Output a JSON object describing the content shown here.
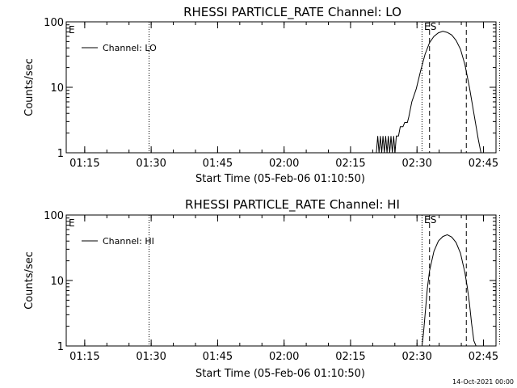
{
  "footer_timestamp": "14-Oct-2021 00:00",
  "chart_data": [
    {
      "type": "line",
      "title": "RHESSI PARTICLE_RATE Channel: LO",
      "xlabel": "Start Time (05-Feb-06 01:10:50)",
      "ylabel": "Counts/sec",
      "y_scale": "log",
      "ylim": [
        1,
        100
      ],
      "y_ticks": [
        "1",
        "10",
        "100"
      ],
      "x_unit": "minutes after 01:10:50",
      "xlim": [
        0,
        97
      ],
      "x_ticks": [
        {
          "label": "01:15",
          "x": 4.17
        },
        {
          "label": "01:30",
          "x": 19.17
        },
        {
          "label": "01:45",
          "x": 34.17
        },
        {
          "label": "02:00",
          "x": 49.17
        },
        {
          "label": "02:15",
          "x": 64.17
        },
        {
          "label": "02:30",
          "x": 79.17
        },
        {
          "label": "02:45",
          "x": 94.17
        }
      ],
      "legend": {
        "label": "Channel: LO",
        "position": "top-left",
        "corner_mark": "E"
      },
      "series": [
        {
          "name": "Channel: LO",
          "points": [
            [
              70.0,
              1.0
            ],
            [
              70.3,
              1.8
            ],
            [
              70.6,
              1.0
            ],
            [
              70.9,
              1.8
            ],
            [
              71.2,
              1.0
            ],
            [
              71.5,
              1.8
            ],
            [
              71.8,
              1.0
            ],
            [
              72.1,
              1.8
            ],
            [
              72.4,
              1.0
            ],
            [
              72.7,
              1.8
            ],
            [
              73.0,
              1.0
            ],
            [
              73.3,
              1.8
            ],
            [
              73.6,
              1.0
            ],
            [
              73.9,
              1.8
            ],
            [
              74.2,
              1.0
            ],
            [
              74.5,
              1.8
            ],
            [
              74.8,
              1.8
            ],
            [
              75.0,
              1.8
            ],
            [
              75.4,
              2.5
            ],
            [
              76.0,
              2.5
            ],
            [
              76.4,
              2.9
            ],
            [
              77.0,
              2.9
            ],
            [
              77.3,
              3.5
            ],
            [
              78.0,
              6.0
            ],
            [
              79.0,
              9.5
            ],
            [
              80.0,
              18.0
            ],
            [
              81.0,
              32.0
            ],
            [
              82.0,
              48.0
            ],
            [
              83.0,
              60.0
            ],
            [
              84.0,
              68.0
            ],
            [
              85.0,
              72.0
            ],
            [
              86.0,
              69.0
            ],
            [
              87.0,
              63.0
            ],
            [
              88.0,
              52.0
            ],
            [
              89.0,
              38.0
            ],
            [
              90.0,
              22.0
            ],
            [
              91.0,
              10.0
            ],
            [
              92.0,
              4.0
            ],
            [
              93.0,
              1.6
            ],
            [
              93.6,
              1.0
            ]
          ]
        }
      ],
      "markers": [
        {
          "kind": "dotted",
          "x": 18.7
        },
        {
          "kind": "dotted",
          "x": 80.3
        },
        {
          "kind": "dashed",
          "x": 82.0,
          "label": "S"
        },
        {
          "kind": "dashed",
          "x": 90.3
        },
        {
          "kind": "dotted",
          "x": 97.8
        },
        {
          "kind": "label",
          "x": 80.6,
          "label": "E"
        }
      ]
    },
    {
      "type": "line",
      "title": "RHESSI PARTICLE_RATE Channel: HI",
      "xlabel": "Start Time (05-Feb-06 01:10:50)",
      "ylabel": "Counts/sec",
      "y_scale": "log",
      "ylim": [
        1,
        100
      ],
      "y_ticks": [
        "1",
        "10",
        "100"
      ],
      "x_unit": "minutes after 01:10:50",
      "xlim": [
        0,
        97
      ],
      "x_ticks": [
        {
          "label": "01:15",
          "x": 4.17
        },
        {
          "label": "01:30",
          "x": 19.17
        },
        {
          "label": "01:45",
          "x": 34.17
        },
        {
          "label": "02:00",
          "x": 49.17
        },
        {
          "label": "02:15",
          "x": 64.17
        },
        {
          "label": "02:30",
          "x": 79.17
        },
        {
          "label": "02:45",
          "x": 94.17
        }
      ],
      "legend": {
        "label": "Channel: HI",
        "position": "top-left",
        "corner_mark": "E"
      },
      "series": [
        {
          "name": "Channel: HI",
          "points": [
            [
              80.3,
              1.0
            ],
            [
              80.6,
              1.5
            ],
            [
              81.0,
              3.0
            ],
            [
              81.5,
              7.5
            ],
            [
              82.0,
              14.0
            ],
            [
              83.0,
              28.0
            ],
            [
              84.0,
              40.0
            ],
            [
              85.0,
              47.0
            ],
            [
              86.0,
              50.0
            ],
            [
              87.0,
              46.0
            ],
            [
              88.0,
              38.0
            ],
            [
              89.0,
              26.0
            ],
            [
              90.0,
              13.0
            ],
            [
              90.5,
              8.0
            ],
            [
              91.0,
              4.5
            ],
            [
              91.5,
              2.2
            ],
            [
              92.0,
              1.2
            ],
            [
              92.5,
              1.0
            ]
          ]
        }
      ],
      "markers": [
        {
          "kind": "dotted",
          "x": 18.7
        },
        {
          "kind": "dotted",
          "x": 80.3
        },
        {
          "kind": "dashed",
          "x": 82.0,
          "label": "S"
        },
        {
          "kind": "dashed",
          "x": 90.3
        },
        {
          "kind": "dotted",
          "x": 97.8
        },
        {
          "kind": "label",
          "x": 80.6,
          "label": "E"
        }
      ]
    }
  ]
}
